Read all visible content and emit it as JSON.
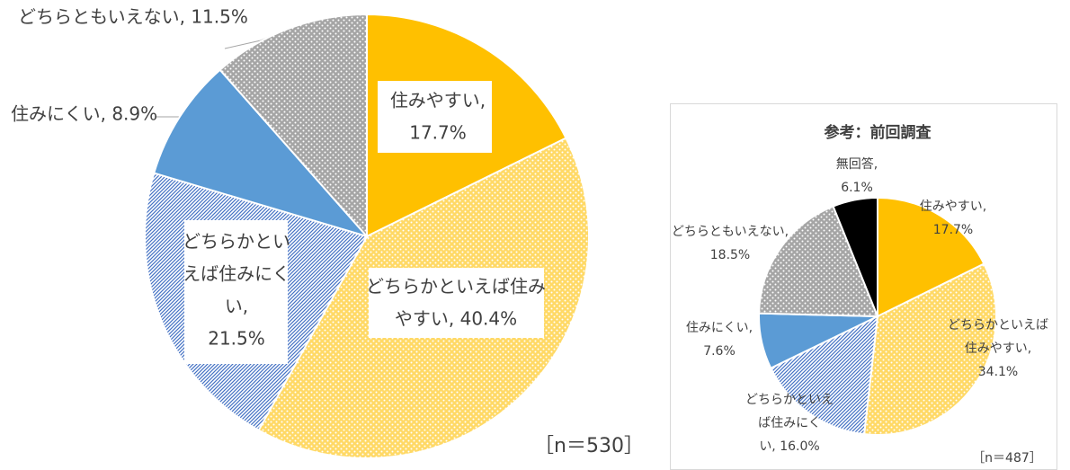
{
  "chart_data": [
    {
      "type": "pie",
      "values": [
        17.7,
        40.4,
        21.5,
        8.9,
        11.5
      ],
      "value_labels": [
        [
          "住みやすい,",
          "17.7%"
        ],
        [
          "どちらかといえば住み",
          "やすい, 40.4%"
        ],
        [
          "どちらかとい",
          "えば住みにく",
          "い,",
          "21.5%"
        ],
        [
          "住みにくい, 8.9%"
        ],
        [
          "どちらともいえない, 11.5%"
        ]
      ],
      "colors": [
        "#FFC000",
        "#FFD966",
        "#4472C4",
        "#5B9BD5",
        "#A5A5A5"
      ],
      "patterns": [
        "solid",
        "dots",
        "hatch",
        "solid",
        "dots"
      ],
      "note": "［n＝530］"
    },
    {
      "type": "pie",
      "title": "参考：前回調査",
      "values": [
        17.7,
        34.1,
        16.0,
        7.6,
        18.5,
        6.1
      ],
      "value_labels": [
        [
          "住みやすい,",
          "17.7%"
        ],
        [
          "どちらかといえば",
          "住みやすい,",
          "34.1%"
        ],
        [
          "どちらかといえ",
          "ば住みにく",
          "い, 16.0%"
        ],
        [
          "住みにくい,",
          "7.6%"
        ],
        [
          "どちらともいえない,",
          "18.5%"
        ],
        [
          "無回答,",
          "6.1%"
        ]
      ],
      "colors": [
        "#FFC000",
        "#FFD966",
        "#4472C4",
        "#5B9BD5",
        "#A5A5A5",
        "#000000"
      ],
      "patterns": [
        "solid",
        "dots",
        "hatch",
        "solid",
        "dots",
        "solid"
      ],
      "note": "［n＝487］"
    }
  ]
}
